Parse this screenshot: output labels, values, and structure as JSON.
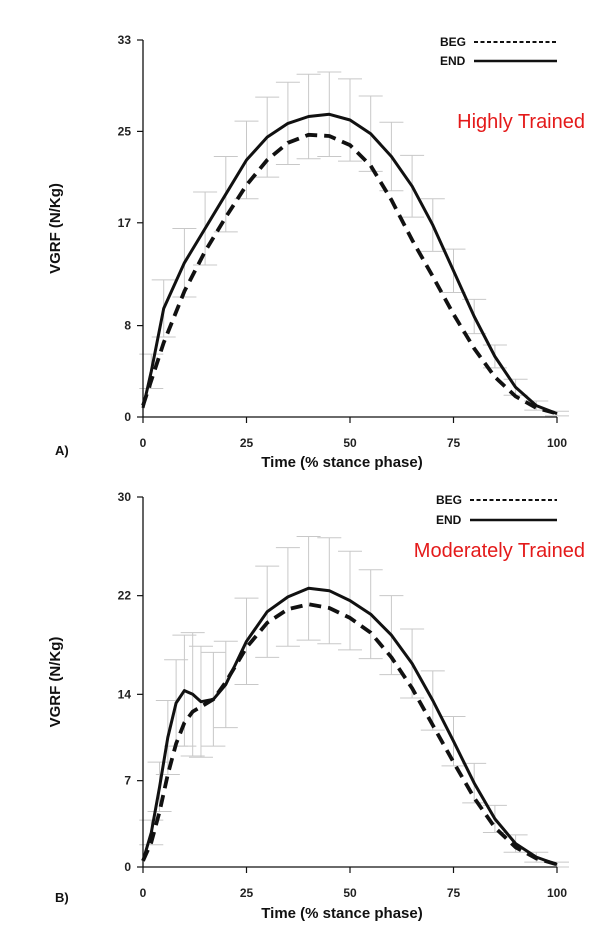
{
  "chart_data": [
    {
      "type": "line",
      "panel_label": "A)",
      "title": "Highly Trained",
      "title_color": "#e41a1a",
      "xlabel": "Time (% stance phase)",
      "ylabel": "VGRF (N/Kg)",
      "xlim": [
        0,
        100
      ],
      "ylim": [
        0,
        33
      ],
      "xticks": [
        0,
        25,
        50,
        75,
        100
      ],
      "xtick_labels": [
        "0",
        "25",
        "50",
        "75",
        "100"
      ],
      "yticks": [
        0,
        8,
        17,
        25,
        33
      ],
      "ytick_labels": [
        "0",
        "8",
        "17",
        "25",
        "33"
      ],
      "legend": [
        "BEG",
        "END"
      ],
      "x": [
        0,
        2,
        5,
        10,
        15,
        20,
        25,
        30,
        35,
        40,
        45,
        50,
        55,
        60,
        65,
        70,
        75,
        80,
        85,
        90,
        95,
        100
      ],
      "series": [
        {
          "name": "BEG",
          "style": "dashed",
          "values": [
            1.0,
            3.2,
            6.5,
            11.0,
            14.5,
            17.5,
            20.3,
            22.5,
            24.0,
            24.7,
            24.6,
            23.8,
            22.0,
            19.0,
            15.5,
            12.3,
            9.0,
            6.0,
            3.5,
            1.8,
            0.8,
            0.3
          ]
        },
        {
          "name": "END",
          "style": "solid",
          "values": [
            0.8,
            4.0,
            9.5,
            13.5,
            16.5,
            19.5,
            22.5,
            24.5,
            25.7,
            26.3,
            26.5,
            26.0,
            24.8,
            22.8,
            20.2,
            16.8,
            12.8,
            8.8,
            5.3,
            2.6,
            1.0,
            0.3
          ]
        }
      ],
      "sd": [
        0,
        1.5,
        2.5,
        3.0,
        3.2,
        3.3,
        3.4,
        3.5,
        3.6,
        3.7,
        3.7,
        3.6,
        3.3,
        3.0,
        2.7,
        2.3,
        1.9,
        1.5,
        1.0,
        0.7,
        0.4,
        0.2
      ]
    },
    {
      "type": "line",
      "panel_label": "B)",
      "title": "Moderately Trained",
      "title_color": "#e41a1a",
      "xlabel": "Time (% stance phase)",
      "ylabel": "VGRF (N/Kg)",
      "xlim": [
        0,
        100
      ],
      "ylim": [
        0,
        30
      ],
      "xticks": [
        0,
        25,
        50,
        75,
        100
      ],
      "xtick_labels": [
        "0",
        "25",
        "50",
        "75",
        "100"
      ],
      "yticks": [
        0,
        7,
        14,
        22,
        30
      ],
      "ytick_labels": [
        "0",
        "7",
        "14",
        "22",
        "30"
      ],
      "legend": [
        "BEG",
        "END"
      ],
      "x": [
        0,
        2,
        4,
        6,
        8,
        10,
        12,
        14,
        17,
        20,
        25,
        30,
        35,
        40,
        45,
        50,
        55,
        60,
        65,
        70,
        75,
        80,
        85,
        90,
        95,
        100
      ],
      "series": [
        {
          "name": "BEG",
          "style": "dashed",
          "values": [
            0.5,
            2.0,
            4.5,
            7.5,
            10.0,
            11.7,
            12.6,
            13.0,
            13.6,
            15.0,
            17.8,
            19.8,
            20.9,
            21.3,
            21.0,
            20.2,
            19.0,
            17.0,
            14.5,
            11.5,
            8.5,
            5.6,
            3.2,
            1.6,
            0.7,
            0.2
          ]
        },
        {
          "name": "END",
          "style": "solid",
          "values": [
            0.5,
            2.8,
            6.5,
            10.5,
            13.3,
            14.3,
            14.0,
            13.4,
            13.6,
            14.8,
            18.3,
            20.7,
            21.9,
            22.6,
            22.4,
            21.6,
            20.5,
            18.8,
            16.5,
            13.5,
            10.2,
            6.8,
            3.9,
            1.9,
            0.8,
            0.2
          ]
        }
      ],
      "sd": [
        0,
        1.0,
        2.0,
        3.0,
        3.5,
        4.5,
        5.0,
        4.5,
        3.8,
        3.5,
        3.5,
        3.7,
        4.0,
        4.2,
        4.3,
        4.0,
        3.6,
        3.2,
        2.8,
        2.4,
        2.0,
        1.6,
        1.1,
        0.7,
        0.4,
        0.2
      ]
    }
  ]
}
